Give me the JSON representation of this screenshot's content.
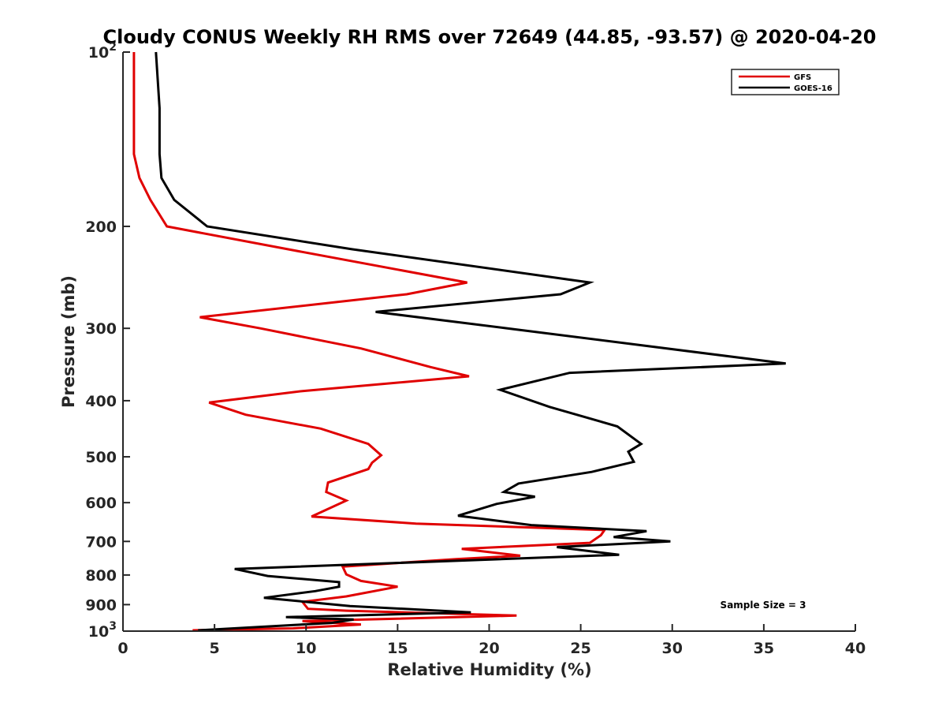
{
  "chart_data": {
    "type": "line",
    "title": "Cloudy CONUS Weekly RH RMS over 72649 (44.85, -93.57) @ 2020-04-20",
    "xlabel": "Relative Humidity (%)",
    "ylabel": "Pressure (mb)",
    "xlim": [
      0,
      40
    ],
    "ylim": [
      100,
      1000
    ],
    "y_scale": "log",
    "y_reversed": true,
    "grid": false,
    "legend_position": "top-right",
    "annotation": "Sample Size = 3",
    "x_ticks": [
      "0",
      "5",
      "10",
      "15",
      "20",
      "25",
      "30",
      "35",
      "40"
    ],
    "y_ticks": [
      {
        "value": 100,
        "base": "10",
        "exp": "2"
      },
      {
        "value": 200,
        "label": "200"
      },
      {
        "value": 300,
        "label": "300"
      },
      {
        "value": 400,
        "label": "400"
      },
      {
        "value": 500,
        "label": "500"
      },
      {
        "value": 600,
        "label": "600"
      },
      {
        "value": 700,
        "label": "700"
      },
      {
        "value": 800,
        "label": "800"
      },
      {
        "value": 900,
        "label": "900"
      },
      {
        "value": 1000,
        "base": "10",
        "exp": "3"
      }
    ],
    "series": [
      {
        "name": "GFS",
        "color": "#e00000",
        "points": [
          [
            0.6,
            100
          ],
          [
            0.6,
            125
          ],
          [
            0.6,
            150
          ],
          [
            0.9,
            165
          ],
          [
            1.5,
            180
          ],
          [
            2.4,
            200
          ],
          [
            9.0,
            219
          ],
          [
            18.8,
            250
          ],
          [
            15.5,
            262
          ],
          [
            4.2,
            287
          ],
          [
            7.5,
            300
          ],
          [
            13.0,
            325
          ],
          [
            16.8,
            350
          ],
          [
            18.9,
            363
          ],
          [
            9.8,
            385
          ],
          [
            4.7,
            403
          ],
          [
            6.7,
            423
          ],
          [
            10.8,
            447
          ],
          [
            13.4,
            475
          ],
          [
            14.1,
            497
          ],
          [
            13.6,
            512
          ],
          [
            13.4,
            525
          ],
          [
            11.2,
            554
          ],
          [
            11.1,
            575
          ],
          [
            12.2,
            595
          ],
          [
            10.3,
            634
          ],
          [
            16.0,
            652
          ],
          [
            26.3,
            669
          ],
          [
            26.1,
            683
          ],
          [
            25.5,
            704
          ],
          [
            18.5,
            721
          ],
          [
            21.7,
            741
          ],
          [
            18.2,
            751
          ],
          [
            12.0,
            774
          ],
          [
            12.2,
            798
          ],
          [
            13.0,
            819
          ],
          [
            15.0,
            838
          ],
          [
            12.2,
            871
          ],
          [
            9.8,
            890
          ],
          [
            10.1,
            915
          ],
          [
            12.2,
            922
          ],
          [
            21.5,
            940
          ],
          [
            9.8,
            961
          ],
          [
            13.0,
            974
          ],
          [
            9.3,
            989
          ],
          [
            3.8,
            997
          ]
        ]
      },
      {
        "name": "GOES-16",
        "color": "#000000",
        "points": [
          [
            1.8,
            100
          ],
          [
            2.0,
            125
          ],
          [
            2.0,
            150
          ],
          [
            2.1,
            165
          ],
          [
            2.8,
            180
          ],
          [
            4.6,
            200
          ],
          [
            12.5,
            219
          ],
          [
            25.5,
            250
          ],
          [
            23.9,
            262
          ],
          [
            13.8,
            281
          ],
          [
            21.0,
            300
          ],
          [
            36.2,
            345
          ],
          [
            24.4,
            358
          ],
          [
            20.6,
            383
          ],
          [
            23.3,
            410
          ],
          [
            27.0,
            443
          ],
          [
            28.3,
            475
          ],
          [
            27.6,
            490
          ],
          [
            27.9,
            510
          ],
          [
            25.6,
            531
          ],
          [
            21.6,
            556
          ],
          [
            20.8,
            575
          ],
          [
            22.5,
            586
          ],
          [
            20.4,
            603
          ],
          [
            18.3,
            632
          ],
          [
            22.3,
            656
          ],
          [
            28.6,
            672
          ],
          [
            26.8,
            688
          ],
          [
            29.9,
            700
          ],
          [
            23.7,
            716
          ],
          [
            27.1,
            738
          ],
          [
            6.1,
            781
          ],
          [
            7.9,
            803
          ],
          [
            11.8,
            823
          ],
          [
            11.8,
            838
          ],
          [
            10.5,
            853
          ],
          [
            7.7,
            876
          ],
          [
            12.4,
            905
          ],
          [
            19.0,
            928
          ],
          [
            8.9,
            946
          ],
          [
            12.6,
            955
          ],
          [
            11.4,
            968
          ],
          [
            4.1,
            997
          ]
        ]
      }
    ]
  }
}
